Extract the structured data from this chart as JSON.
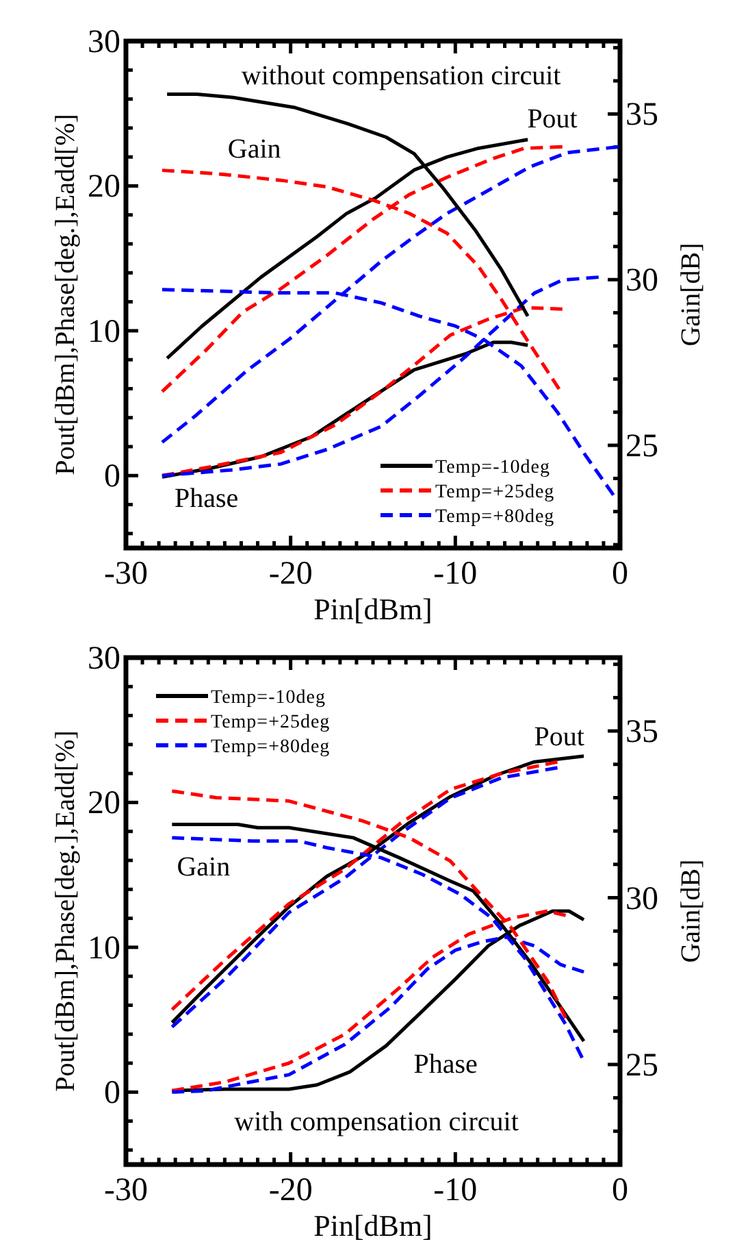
{
  "chart_data": [
    {
      "type": "line",
      "xlabel": "Pin[dBm]",
      "ylabel": "Pout[dBm],Phase[deg.],Eadd[%]",
      "y2label": "Gain[dB]",
      "xlim": [
        -30,
        0
      ],
      "ylim": [
        -5,
        30
      ],
      "y2lim": [
        21.9,
        37.2
      ],
      "xticks": [
        -30,
        {
          "value": -29,
          "label": null
        },
        {
          "value": -28,
          "label": null
        },
        {
          "value": -27,
          "label": null
        },
        {
          "value": -26,
          "label": null
        },
        {
          "value": -25,
          "label": null
        },
        {
          "value": -24,
          "label": null
        },
        {
          "value": -23,
          "label": null
        },
        {
          "value": -22,
          "label": null
        },
        {
          "value": -21,
          "label": null
        },
        -20,
        {
          "value": -19,
          "label": null
        },
        {
          "value": -18,
          "label": null
        },
        {
          "value": -17,
          "label": null
        },
        {
          "value": -16,
          "label": null
        },
        {
          "value": -15,
          "label": null
        },
        {
          "value": -14,
          "label": null
        },
        {
          "value": -13,
          "label": null
        },
        {
          "value": -12,
          "label": null
        },
        {
          "value": -11,
          "label": null
        },
        -10,
        {
          "value": -9,
          "label": null
        },
        {
          "value": -8,
          "label": null
        },
        {
          "value": -7,
          "label": null
        },
        {
          "value": -6,
          "label": null
        },
        {
          "value": -5,
          "label": null
        },
        {
          "value": -4,
          "label": null
        },
        {
          "value": -3,
          "label": null
        },
        {
          "value": -2,
          "label": null
        },
        {
          "value": -1,
          "label": null
        },
        0
      ],
      "yticks": [
        {
          "value": -4,
          "label": null
        },
        {
          "value": -2,
          "label": null
        },
        0,
        {
          "value": 2,
          "label": null
        },
        {
          "value": 4,
          "label": null
        },
        {
          "value": 6,
          "label": null
        },
        {
          "value": 8,
          "label": null
        },
        10,
        {
          "value": 12,
          "label": null
        },
        {
          "value": 14,
          "label": null
        },
        {
          "value": 16,
          "label": null
        },
        {
          "value": 18,
          "label": null
        },
        20,
        {
          "value": 22,
          "label": null
        },
        {
          "value": 24,
          "label": null
        },
        {
          "value": 26,
          "label": null
        },
        {
          "value": 28,
          "label": null
        },
        30
      ],
      "y2ticks": [
        {
          "value": 22,
          "label": null
        },
        {
          "value": 23,
          "label": null
        },
        {
          "value": 24,
          "label": null
        },
        25,
        {
          "value": 26,
          "label": null
        },
        {
          "value": 27,
          "label": null
        },
        {
          "value": 28,
          "label": null
        },
        {
          "value": 29,
          "label": null
        },
        30,
        {
          "value": 31,
          "label": null
        },
        {
          "value": 32,
          "label": null
        },
        {
          "value": 33,
          "label": null
        },
        {
          "value": 34,
          "label": null
        },
        35,
        {
          "value": 36,
          "label": null
        },
        {
          "value": 37,
          "label": null
        }
      ],
      "grid": false,
      "legend": "bottom right",
      "marker": "none",
      "annotations": [
        "without compensation circuit",
        "Pout",
        "Gain",
        "Phase"
      ],
      "series": [
        {
          "name": "Temp=-10deg",
          "color": "#000000",
          "line_style": "solid",
          "x": [
            -27.5,
            -25.4,
            -21.8,
            -18.4,
            -16.6,
            -14.8,
            -12.5,
            -10.5,
            -8.6,
            -5.6
          ],
          "values": [
            8.1,
            10.3,
            13.7,
            16.5,
            18.1,
            19.2,
            21.1,
            22.0,
            22.6,
            23.2
          ]
        },
        {
          "name": "Temp=+25deg",
          "color": "#ff0000",
          "line_style": "dashed",
          "x": [
            -27.8,
            -25.1,
            -22.9,
            -20.6,
            -17.8,
            -15,
            -12.8,
            -10.5,
            -7.7,
            -5.8,
            -3.5
          ],
          "values": [
            5.8,
            8.7,
            11.3,
            12.9,
            15.2,
            17.7,
            19.4,
            20.6,
            21.9,
            22.6,
            22.7
          ]
        },
        {
          "name": "Temp=+80deg",
          "color": "#0000ff",
          "line_style": "dashed",
          "x": [
            -27.8,
            -25.7,
            -22.6,
            -20.1,
            -17.3,
            -14.5,
            -12.5,
            -10.5,
            -8.3,
            -5.5,
            -3.2,
            -0.1
          ],
          "values": [
            2.3,
            4.2,
            7.3,
            9.4,
            12.1,
            14.8,
            16.5,
            18.1,
            19.5,
            21.3,
            22.3,
            22.7
          ]
        },
        {
          "color": "#000000",
          "line_style": "solid",
          "x": [
            -27.8,
            -24.9,
            -21.8,
            -18.7,
            -15.9,
            -12.5,
            -9.4,
            -7.7,
            -6.6,
            -5.6
          ],
          "values": [
            -0.1,
            0.5,
            1.3,
            2.7,
            4.8,
            7.3,
            8.4,
            9.2,
            9.2,
            9.0
          ]
        },
        {
          "color": "#ff0000",
          "line_style": "dashed",
          "x": [
            -27.8,
            -24.9,
            -20.6,
            -17.3,
            -14.5,
            -12.2,
            -10.3,
            -8.0,
            -5.8,
            -3.5
          ],
          "values": [
            0,
            0.6,
            1.6,
            3.5,
            5.8,
            7.9,
            9.7,
            10.8,
            11.6,
            11.5
          ]
        },
        {
          "color": "#0000ff",
          "line_style": "dashed",
          "x": [
            -27.8,
            -23.5,
            -20.6,
            -17.8,
            -14.5,
            -12.2,
            -9.4,
            -7.7,
            -5.2,
            -3.5,
            -1.3
          ],
          "values": [
            0,
            0.4,
            0.8,
            1.8,
            3.4,
            5.5,
            8.2,
            10.0,
            12.6,
            13.5,
            13.7
          ]
        },
        {
          "color": "#000000",
          "line_style": "solid",
          "axis": "y2",
          "x": [
            -27.5,
            -25.7,
            -23.5,
            -19.8,
            -16.5,
            -14.2,
            -12.5,
            -10.8,
            -8.8,
            -7.2,
            -5.6
          ],
          "values": [
            35.6,
            35.6,
            35.5,
            35.2,
            34.7,
            34.3,
            33.8,
            32.8,
            31.5,
            30.3,
            28.9
          ]
        },
        {
          "color": "#ff0000",
          "line_style": "dashed",
          "axis": "y2",
          "x": [
            -27.8,
            -24.6,
            -20.6,
            -17.8,
            -15,
            -12.8,
            -10.5,
            -8.6,
            -7.2,
            -5.8,
            -3.7
          ],
          "values": [
            33.3,
            33.2,
            33.0,
            32.8,
            32.4,
            32.0,
            31.4,
            30.4,
            29.4,
            28.3,
            26.7
          ]
        },
        {
          "color": "#0000ff",
          "line_style": "dashed",
          "axis": "y2",
          "x": [
            -27.8,
            -20.6,
            -17.3,
            -14.5,
            -12.2,
            -10,
            -8.3,
            -6.0,
            -3.8,
            -2.1,
            -0.4
          ],
          "values": [
            29.7,
            29.6,
            29.6,
            29.3,
            28.9,
            28.6,
            28.2,
            27.4,
            26.0,
            24.7,
            23.5
          ]
        }
      ]
    },
    {
      "type": "line",
      "xlabel": "Pin[dBm]",
      "ylabel": "Pout[dBm],Phase[deg.],Eadd[%]",
      "y2label": "Gain[dB]",
      "xlim": [
        -30,
        0
      ],
      "ylim": [
        -5,
        30
      ],
      "y2lim": [
        22,
        37.2
      ],
      "xticks": [
        -30,
        {
          "value": -29,
          "label": null
        },
        {
          "value": -28,
          "label": null
        },
        {
          "value": -27,
          "label": null
        },
        {
          "value": -26,
          "label": null
        },
        {
          "value": -25,
          "label": null
        },
        {
          "value": -24,
          "label": null
        },
        {
          "value": -23,
          "label": null
        },
        {
          "value": -22,
          "label": null
        },
        {
          "value": -21,
          "label": null
        },
        -20,
        {
          "value": -19,
          "label": null
        },
        {
          "value": -18,
          "label": null
        },
        {
          "value": -17,
          "label": null
        },
        {
          "value": -16,
          "label": null
        },
        {
          "value": -15,
          "label": null
        },
        {
          "value": -14,
          "label": null
        },
        {
          "value": -13,
          "label": null
        },
        {
          "value": -12,
          "label": null
        },
        {
          "value": -11,
          "label": null
        },
        -10,
        {
          "value": -9,
          "label": null
        },
        {
          "value": -8,
          "label": null
        },
        {
          "value": -7,
          "label": null
        },
        {
          "value": -6,
          "label": null
        },
        {
          "value": -5,
          "label": null
        },
        {
          "value": -4,
          "label": null
        },
        {
          "value": -3,
          "label": null
        },
        {
          "value": -2,
          "label": null
        },
        {
          "value": -1,
          "label": null
        },
        0
      ],
      "yticks": [
        {
          "value": -4,
          "label": null
        },
        {
          "value": -2,
          "label": null
        },
        0,
        {
          "value": 2,
          "label": null
        },
        {
          "value": 4,
          "label": null
        },
        {
          "value": 6,
          "label": null
        },
        {
          "value": 8,
          "label": null
        },
        10,
        {
          "value": 12,
          "label": null
        },
        {
          "value": 14,
          "label": null
        },
        {
          "value": 16,
          "label": null
        },
        {
          "value": 18,
          "label": null
        },
        20,
        {
          "value": 22,
          "label": null
        },
        {
          "value": 24,
          "label": null
        },
        {
          "value": 26,
          "label": null
        },
        {
          "value": 28,
          "label": null
        },
        30
      ],
      "y2ticks": [
        {
          "value": 23,
          "label": null
        },
        {
          "value": 24,
          "label": null
        },
        25,
        {
          "value": 26,
          "label": null
        },
        {
          "value": 27,
          "label": null
        },
        {
          "value": 28,
          "label": null
        },
        {
          "value": 29,
          "label": null
        },
        30,
        {
          "value": 31,
          "label": null
        },
        {
          "value": 32,
          "label": null
        },
        {
          "value": 33,
          "label": null
        },
        {
          "value": 34,
          "label": null
        },
        35,
        {
          "value": 36,
          "label": null
        },
        {
          "value": 37,
          "label": null
        }
      ],
      "grid": false,
      "legend": "top left",
      "marker": "none",
      "annotations": [
        "Pout",
        "Gain",
        "Phase",
        "with compensation circuit"
      ],
      "series": [
        {
          "name": "Temp=-10deg",
          "color": "#000000",
          "line_style": "solid",
          "x": [
            -27.2,
            -25.4,
            -22.3,
            -20.1,
            -17.8,
            -15.3,
            -12.8,
            -10.3,
            -7.5,
            -5.2,
            -2.2
          ],
          "values": [
            4.8,
            6.9,
            10.4,
            12.8,
            14.9,
            16.5,
            18.6,
            20.4,
            21.9,
            22.8,
            23.2
          ]
        },
        {
          "name": "Temp=+25deg",
          "color": "#ff0000",
          "line_style": "dashed",
          "x": [
            -27.2,
            -24,
            -20.1,
            -16.7,
            -13.4,
            -10.3,
            -7.2,
            -3.8
          ],
          "values": [
            5.7,
            9.1,
            13.0,
            15.4,
            18.5,
            20.9,
            22.0,
            22.8
          ]
        },
        {
          "name": "Temp=+80deg",
          "color": "#0000ff",
          "line_style": "dashed",
          "x": [
            -27.2,
            -24,
            -20.1,
            -16.7,
            -13.4,
            -10.3,
            -7.2,
            -3.8
          ],
          "values": [
            4.5,
            7.8,
            12.4,
            14.8,
            17.8,
            20.3,
            21.7,
            22.4
          ]
        },
        {
          "color": "#000000",
          "line_style": "solid",
          "x": [
            -27.2,
            -24,
            -20.1,
            -18.4,
            -16.4,
            -14.2,
            -12,
            -10,
            -8,
            -6.1,
            -4.1,
            -3.1,
            -2.2
          ],
          "values": [
            0.1,
            0.2,
            0.2,
            0.5,
            1.4,
            3.2,
            5.6,
            7.8,
            10.1,
            11.5,
            12.5,
            12.5,
            11.9
          ]
        },
        {
          "color": "#ff0000",
          "line_style": "dashed",
          "x": [
            -27.2,
            -24,
            -20.1,
            -16.7,
            -13.4,
            -11.4,
            -9.2,
            -6.6,
            -4.4,
            -3.3
          ],
          "values": [
            0.1,
            0.7,
            2.0,
            4.0,
            7.2,
            9.3,
            10.9,
            12.0,
            12.5,
            12.2
          ]
        },
        {
          "color": "#0000ff",
          "line_style": "dashed",
          "x": [
            -27.2,
            -25.1,
            -22.9,
            -20.1,
            -16.7,
            -13.9,
            -11.7,
            -10,
            -8.3,
            -6.9,
            -5.2,
            -3.6,
            -2.2
          ],
          "values": [
            0,
            0.1,
            0.6,
            1.2,
            3.3,
            5.9,
            8.5,
            9.8,
            10.4,
            10.7,
            10.1,
            8.8,
            8.3
          ]
        },
        {
          "color": "#000000",
          "line_style": "solid",
          "axis": "y2",
          "x": [
            -27.2,
            -23.2,
            -22.0,
            -20.1,
            -16.2,
            -13.4,
            -10.3,
            -8.9,
            -7.2,
            -5.5,
            -3.3,
            -2.2
          ],
          "values": [
            32.2,
            32.2,
            32.1,
            32.1,
            31.8,
            31.2,
            30.5,
            30.2,
            29.2,
            28.1,
            26.5,
            25.7
          ]
        },
        {
          "color": "#ff0000",
          "line_style": "dashed",
          "axis": "y2",
          "x": [
            -27.2,
            -24.5,
            -20.1,
            -15.6,
            -12.8,
            -10.3,
            -8.3,
            -6.6,
            -4.4,
            -3.3
          ],
          "values": [
            33.2,
            33.0,
            32.9,
            32.3,
            31.8,
            31.1,
            30.0,
            29.1,
            27.5,
            26.4
          ]
        },
        {
          "color": "#0000ff",
          "line_style": "dashed",
          "axis": "y2",
          "x": [
            -27.2,
            -22.3,
            -19.5,
            -17.8,
            -14.5,
            -12.0,
            -9.7,
            -7.8,
            -5.8,
            -3.3,
            -2.3
          ],
          "values": [
            31.8,
            31.7,
            31.7,
            31.5,
            31.2,
            30.7,
            30.1,
            29.4,
            28.2,
            26.2,
            25.2
          ]
        }
      ]
    }
  ]
}
